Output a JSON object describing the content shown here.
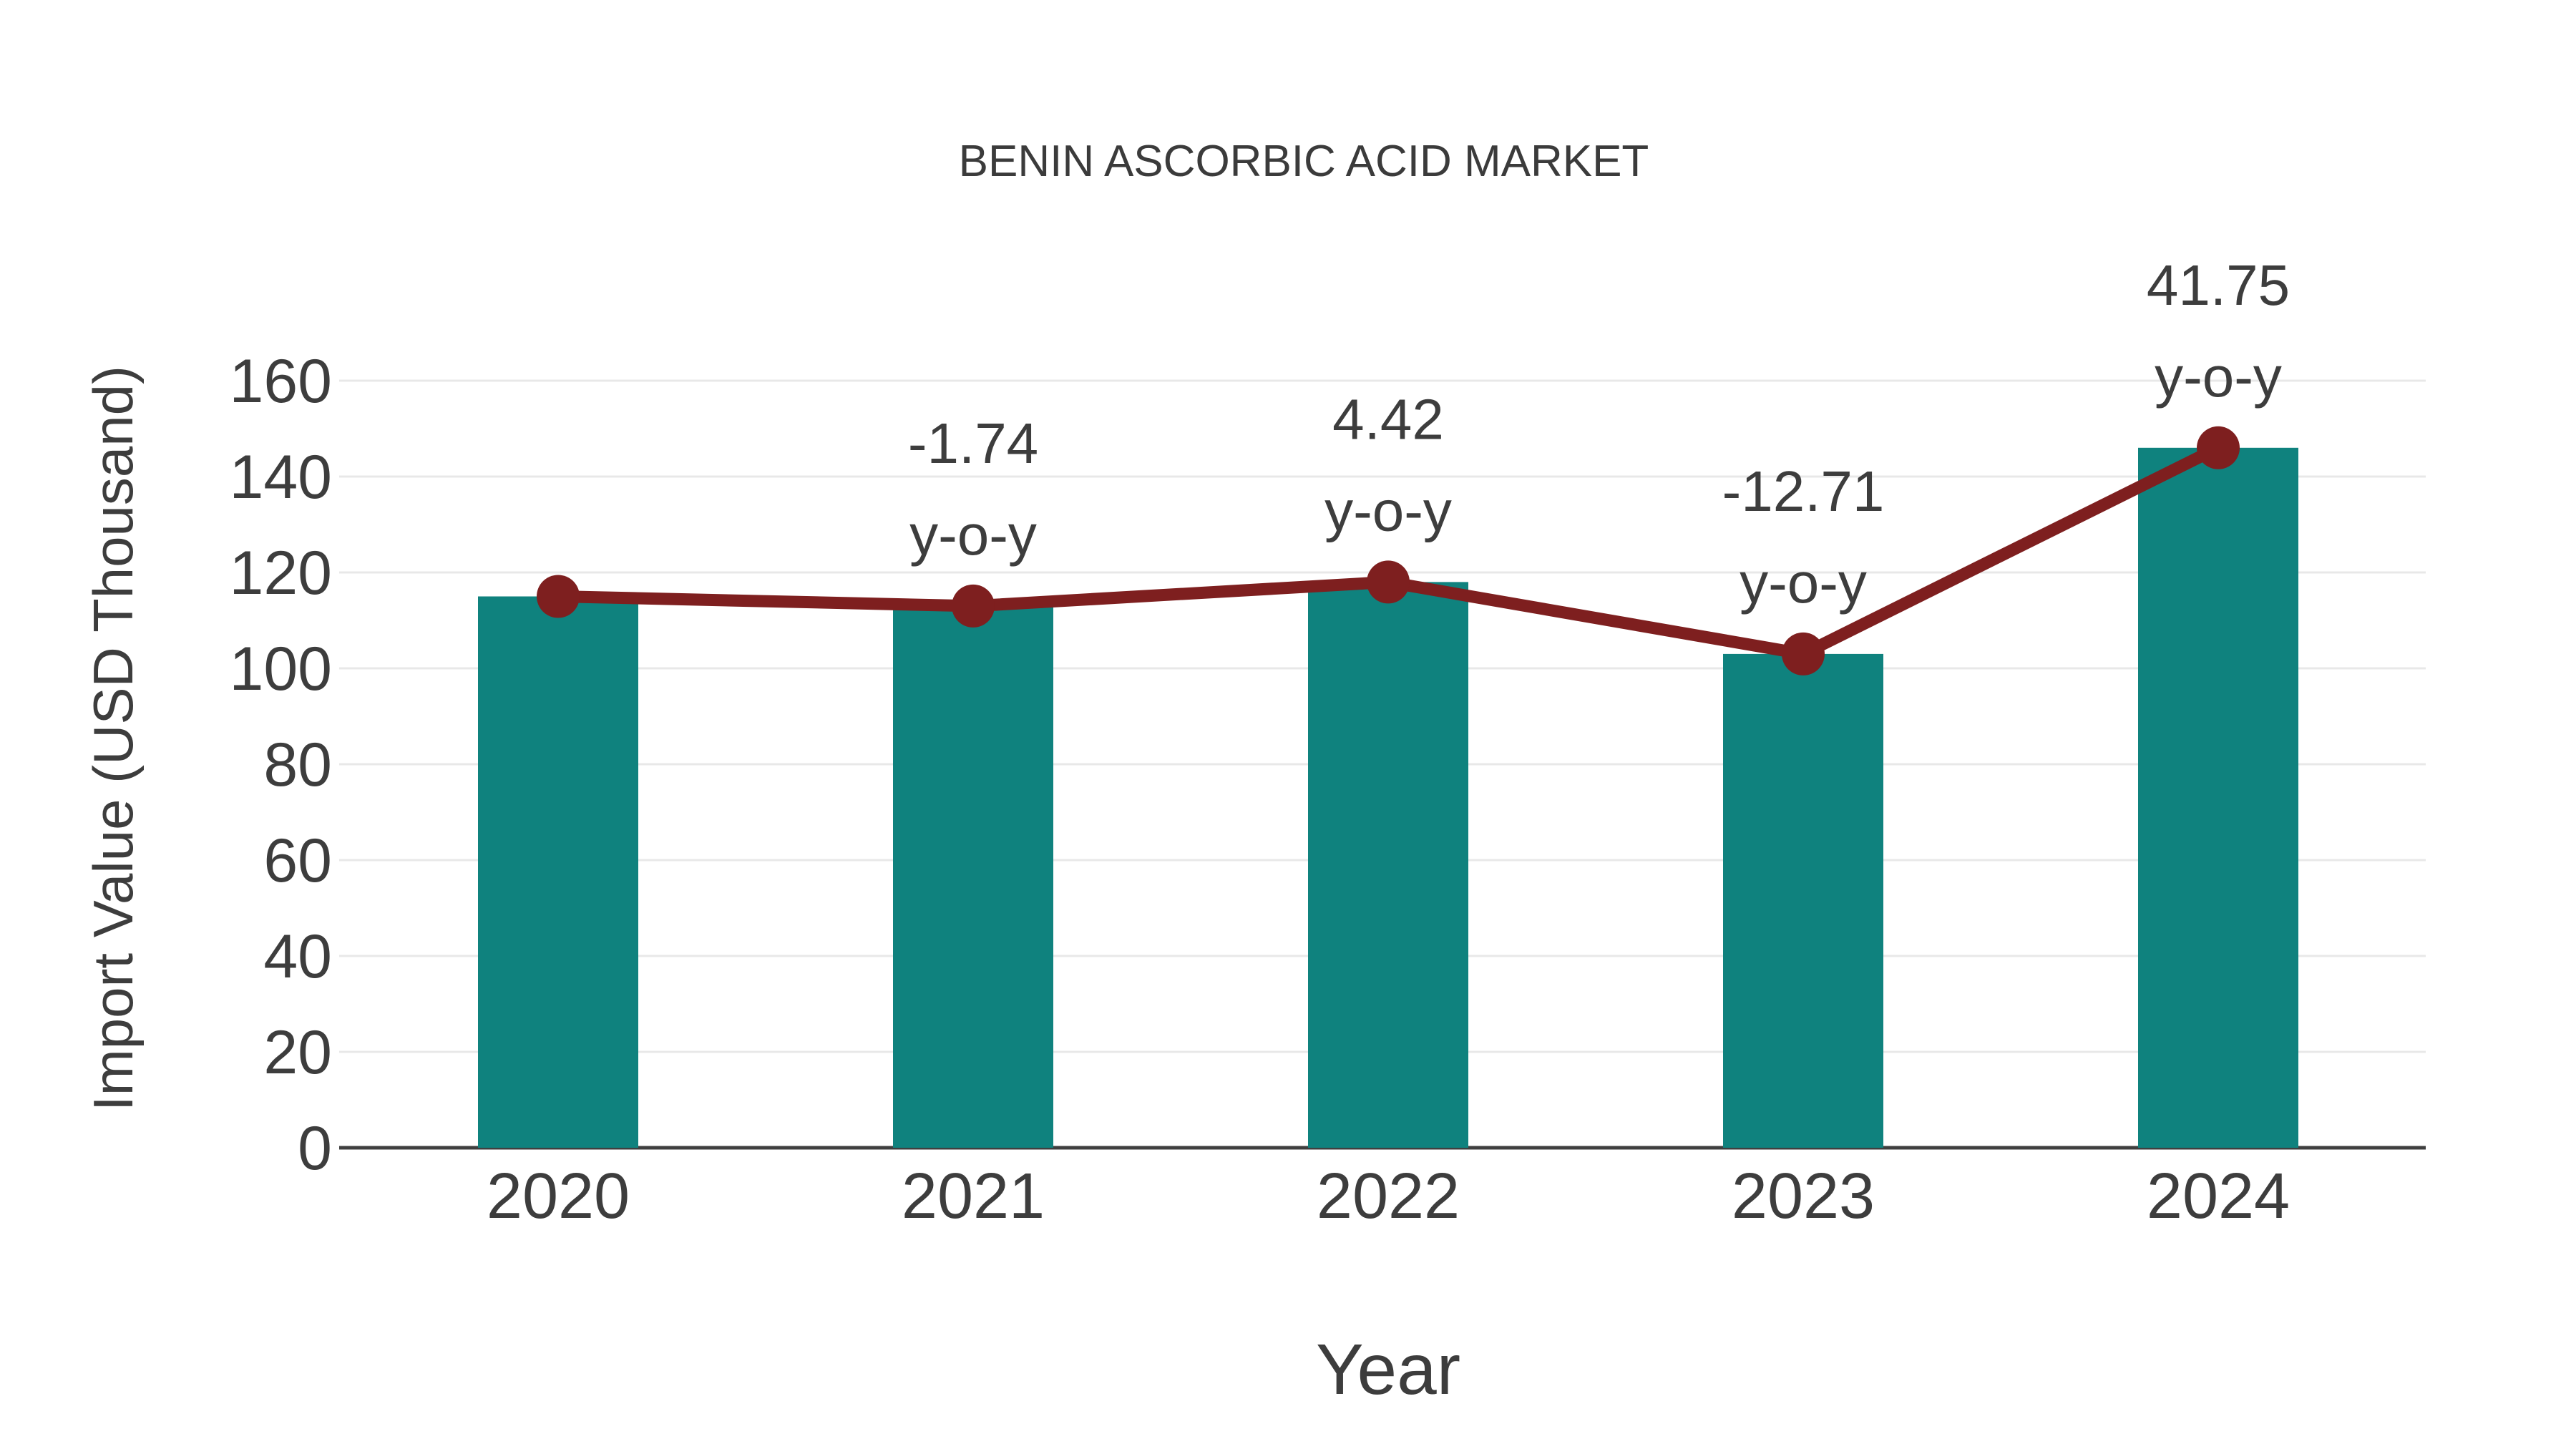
{
  "page": {
    "background": "#ffffff"
  },
  "chart_data": {
    "type": "bar",
    "title": "BENIN ASCORBIC ACID MARKET",
    "xlabel": "Year",
    "ylabel": "Import Value (USD Thousand)",
    "categories": [
      "2020",
      "2021",
      "2022",
      "2023",
      "2024"
    ],
    "series": [
      {
        "name": "Import Value bars",
        "type": "bar",
        "color": "#0f827e",
        "values": [
          115,
          113,
          118,
          103,
          146
        ]
      },
      {
        "name": "Import Value trend line",
        "type": "line",
        "color": "#7e1f1f",
        "values": [
          115,
          113,
          118,
          103,
          146
        ]
      }
    ],
    "annotations": [
      {
        "category": "2021",
        "value": "-1.74",
        "suffix": "y-o-y"
      },
      {
        "category": "2022",
        "value": "4.42",
        "suffix": "y-o-y"
      },
      {
        "category": "2023",
        "value": "-12.71",
        "suffix": "y-o-y"
      },
      {
        "category": "2024",
        "value": "41.75",
        "suffix": "y-o-y"
      }
    ],
    "ylim": [
      0,
      160
    ],
    "yticks": [
      0,
      20,
      40,
      60,
      80,
      100,
      120,
      140,
      160
    ],
    "grid": true,
    "legend": false,
    "colors": {
      "grid": "#e8e8e8",
      "axis": "#3f3f3f",
      "text": "#3d3d3d",
      "title": "#3b3b3b",
      "background": "#ffffff"
    }
  }
}
